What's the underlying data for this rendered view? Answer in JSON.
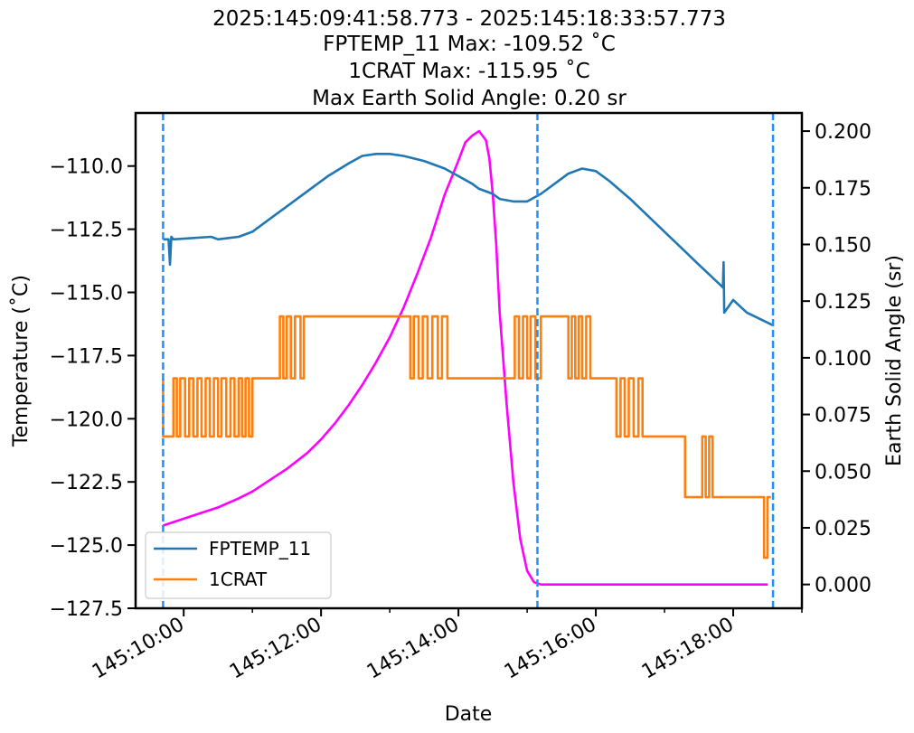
{
  "chart_data": {
    "type": "line",
    "title_lines": [
      "2025:145:09:41:58.773 - 2025:145:18:33:57.773",
      "FPTEMP_11 Max: -109.52 ˚C",
      "1CRAT Max: -115.95 ˚C",
      "Max Earth Solid Angle: 0.20 sr"
    ],
    "xlabel": "Date",
    "ylabel_left": "Temperature (˚C)",
    "ylabel_right": "Earth Solid Angle (sr)",
    "x_unit": "hours (day 145)",
    "xlim": [
      9.3,
      19.0
    ],
    "ylim_left": [
      -127.5,
      -107.9
    ],
    "ylim_right": [
      -0.0105,
      0.208
    ],
    "x_ticks": [
      {
        "value": 10,
        "label": "145:10:00"
      },
      {
        "value": 12,
        "label": "145:12:00"
      },
      {
        "value": 14,
        "label": "145:14:00"
      },
      {
        "value": 16,
        "label": "145:16:00"
      },
      {
        "value": 18,
        "label": "145:18:00"
      }
    ],
    "x_minor_ticks": [
      11,
      13,
      15,
      17,
      19
    ],
    "y_left_ticks": [
      {
        "value": -110.0,
        "label": "−110.0"
      },
      {
        "value": -112.5,
        "label": "−112.5"
      },
      {
        "value": -115.0,
        "label": "−115.0"
      },
      {
        "value": -117.5,
        "label": "−117.5"
      },
      {
        "value": -120.0,
        "label": "−120.0"
      },
      {
        "value": -122.5,
        "label": "−122.5"
      },
      {
        "value": -125.0,
        "label": "−125.0"
      },
      {
        "value": -127.5,
        "label": "−127.5"
      }
    ],
    "y_right_ticks": [
      {
        "value": 0.0,
        "label": "0.000"
      },
      {
        "value": 0.025,
        "label": "0.025"
      },
      {
        "value": 0.05,
        "label": "0.050"
      },
      {
        "value": 0.075,
        "label": "0.075"
      },
      {
        "value": 0.1,
        "label": "0.100"
      },
      {
        "value": 0.125,
        "label": "0.125"
      },
      {
        "value": 0.15,
        "label": "0.150"
      },
      {
        "value": 0.175,
        "label": "0.175"
      },
      {
        "value": 0.2,
        "label": "0.200"
      }
    ],
    "vlines": [
      9.7,
      15.15,
      18.58
    ],
    "legend": {
      "position": "lower-left",
      "entries": [
        "FPTEMP_11",
        "1CRAT"
      ]
    },
    "series": [
      {
        "name": "FPTEMP_11",
        "axis": "left",
        "color": "#1f77b4",
        "x": [
          9.7,
          9.78,
          9.8,
          9.82,
          9.85,
          10.4,
          10.5,
          10.8,
          11.0,
          11.2,
          11.5,
          11.8,
          12.1,
          12.4,
          12.6,
          12.8,
          13.0,
          13.2,
          13.5,
          13.8,
          14.0,
          14.2,
          14.3,
          14.5,
          14.6,
          14.8,
          15.0,
          15.2,
          15.4,
          15.6,
          15.8,
          16.0,
          16.2,
          16.5,
          17.0,
          17.5,
          17.85,
          17.86,
          17.87,
          18.0,
          18.2,
          18.58
        ],
        "y": [
          -112.9,
          -112.9,
          -113.9,
          -112.8,
          -112.9,
          -112.8,
          -112.9,
          -112.8,
          -112.6,
          -112.2,
          -111.6,
          -111.0,
          -110.4,
          -109.9,
          -109.6,
          -109.52,
          -109.52,
          -109.6,
          -109.8,
          -110.1,
          -110.4,
          -110.7,
          -110.9,
          -111.1,
          -111.3,
          -111.4,
          -111.4,
          -111.1,
          -110.7,
          -110.3,
          -110.1,
          -110.2,
          -110.6,
          -111.3,
          -112.6,
          -113.9,
          -114.8,
          -113.8,
          -115.8,
          -115.3,
          -115.8,
          -116.3
        ]
      },
      {
        "name": "1CRAT",
        "axis": "left",
        "color": "#ff7f0e",
        "x": [
          9.7,
          9.7,
          9.85,
          9.85,
          9.9,
          9.9,
          9.95,
          9.95,
          10.02,
          10.02,
          10.08,
          10.08,
          10.14,
          10.14,
          10.2,
          10.2,
          10.26,
          10.26,
          10.32,
          10.32,
          10.38,
          10.38,
          10.44,
          10.44,
          10.5,
          10.5,
          10.55,
          10.55,
          10.62,
          10.62,
          10.68,
          10.68,
          10.74,
          10.74,
          10.8,
          10.8,
          10.85,
          10.85,
          10.9,
          10.9,
          10.95,
          10.95,
          11.0,
          11.0,
          11.4,
          11.4,
          11.45,
          11.45,
          11.5,
          11.5,
          11.56,
          11.56,
          11.62,
          11.62,
          11.7,
          11.7,
          11.75,
          11.75,
          13.3,
          13.3,
          13.35,
          13.35,
          13.42,
          13.42,
          13.48,
          13.48,
          13.55,
          13.55,
          13.62,
          13.62,
          13.7,
          13.7,
          13.76,
          13.76,
          13.84,
          13.84,
          13.9,
          13.9,
          14.82,
          14.82,
          14.88,
          14.88,
          14.94,
          14.94,
          15.0,
          15.0,
          15.05,
          15.05,
          15.12,
          15.12,
          15.2,
          15.2,
          15.6,
          15.6,
          15.65,
          15.65,
          15.7,
          15.7,
          15.75,
          15.75,
          15.8,
          15.8,
          15.86,
          15.86,
          15.92,
          15.92,
          15.98,
          15.98,
          16.3,
          16.3,
          16.36,
          16.36,
          16.42,
          16.42,
          16.48,
          16.48,
          16.55,
          16.55,
          16.62,
          16.62,
          16.68,
          16.68,
          16.75,
          16.75,
          17.3,
          17.3,
          17.55,
          17.55,
          17.6,
          17.6,
          17.65,
          17.65,
          17.7,
          17.7,
          17.75,
          17.75,
          18.45,
          18.45,
          18.5,
          18.5,
          18.55
        ],
        "y": [
          -118.4,
          -120.7,
          -120.7,
          -118.4,
          -118.4,
          -120.7,
          -120.7,
          -118.4,
          -118.4,
          -120.7,
          -120.7,
          -118.4,
          -118.4,
          -120.7,
          -120.7,
          -118.4,
          -118.4,
          -120.7,
          -120.7,
          -118.4,
          -118.4,
          -120.7,
          -120.7,
          -118.4,
          -118.4,
          -120.7,
          -120.7,
          -118.4,
          -118.4,
          -120.7,
          -120.7,
          -118.4,
          -118.4,
          -120.7,
          -120.7,
          -118.4,
          -118.4,
          -120.7,
          -120.7,
          -118.4,
          -118.4,
          -120.7,
          -120.7,
          -118.4,
          -118.4,
          -115.95,
          -115.95,
          -118.4,
          -118.4,
          -115.95,
          -115.95,
          -118.4,
          -118.4,
          -115.95,
          -115.95,
          -118.4,
          -118.4,
          -115.95,
          -115.95,
          -118.4,
          -118.4,
          -115.95,
          -115.95,
          -118.4,
          -118.4,
          -115.95,
          -115.95,
          -118.4,
          -118.4,
          -115.95,
          -115.95,
          -118.4,
          -118.4,
          -115.95,
          -115.95,
          -118.4,
          -118.4,
          -118.4,
          -118.4,
          -115.95,
          -115.95,
          -118.4,
          -118.4,
          -115.95,
          -115.95,
          -118.4,
          -118.4,
          -115.95,
          -115.95,
          -118.4,
          -118.4,
          -115.95,
          -115.95,
          -118.4,
          -118.4,
          -115.95,
          -115.95,
          -118.4,
          -118.4,
          -115.95,
          -115.95,
          -118.4,
          -118.4,
          -115.95,
          -115.95,
          -118.4,
          -118.4,
          -118.4,
          -118.4,
          -120.7,
          -120.7,
          -118.4,
          -118.4,
          -120.7,
          -120.7,
          -118.4,
          -118.4,
          -120.7,
          -120.7,
          -118.4,
          -118.4,
          -120.7,
          -120.7,
          -120.7,
          -120.7,
          -123.1,
          -123.1,
          -120.7,
          -120.7,
          -123.1,
          -123.1,
          -120.7,
          -120.7,
          -123.1,
          -123.1,
          -123.1,
          -123.1,
          -125.5,
          -125.5,
          -123.1,
          -123.1
        ]
      },
      {
        "name": "Earth Solid Angle",
        "axis": "right",
        "color": "#ff00ff",
        "x": [
          9.7,
          9.9,
          10.1,
          10.3,
          10.5,
          10.8,
          11.0,
          11.2,
          11.5,
          11.8,
          12.0,
          12.2,
          12.4,
          12.6,
          12.8,
          13.0,
          13.2,
          13.4,
          13.6,
          13.8,
          14.0,
          14.1,
          14.2,
          14.3,
          14.4,
          14.45,
          14.5,
          14.55,
          14.6,
          14.7,
          14.8,
          14.9,
          15.0,
          15.1,
          15.2,
          15.5,
          16.0,
          17.0,
          18.0,
          18.5
        ],
        "y": [
          0.026,
          0.028,
          0.03,
          0.032,
          0.034,
          0.038,
          0.041,
          0.045,
          0.051,
          0.058,
          0.064,
          0.071,
          0.079,
          0.088,
          0.098,
          0.109,
          0.122,
          0.137,
          0.153,
          0.172,
          0.187,
          0.195,
          0.198,
          0.2,
          0.196,
          0.188,
          0.172,
          0.15,
          0.12,
          0.08,
          0.045,
          0.02,
          0.006,
          0.001,
          0.0,
          0.0,
          0.0,
          0.0,
          0.0,
          0.0
        ]
      }
    ]
  }
}
